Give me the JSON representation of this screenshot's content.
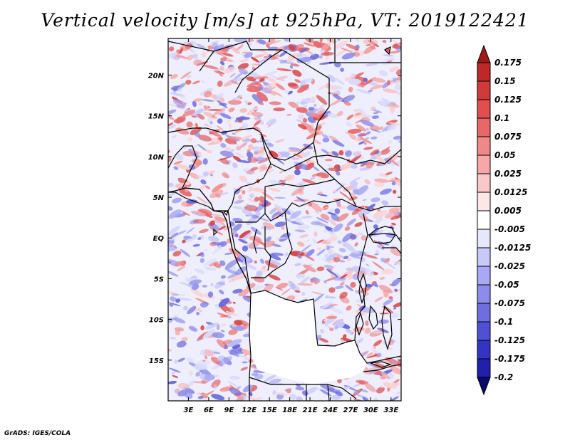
{
  "title": "Vertical velocity [m/s] at 925hPa, VT: 2019122421",
  "credit": "GrADS: IGES/COLA",
  "map": {
    "lon_range": [
      0,
      34.5
    ],
    "lat_range": [
      -20,
      24.5
    ],
    "lon_ticks": [
      "3E",
      "6E",
      "9E",
      "12E",
      "15E",
      "18E",
      "21E",
      "24E",
      "27E",
      "30E",
      "33E"
    ],
    "lon_tick_values": [
      3,
      6,
      9,
      12,
      15,
      18,
      21,
      24,
      27,
      30,
      33
    ],
    "lat_ticks": [
      "20N",
      "15N",
      "10N",
      "5N",
      "EQ",
      "5S",
      "10S",
      "15S"
    ],
    "lat_tick_values": [
      20,
      15,
      10,
      5,
      0,
      -5,
      -10,
      -15
    ]
  },
  "colorbar": {
    "labels": [
      "0.175",
      "0.15",
      "0.125",
      "0.1",
      "0.075",
      "0.05",
      "0.025",
      "0.0125",
      "0.005",
      "-0.005",
      "-0.0125",
      "-0.025",
      "-0.05",
      "-0.075",
      "-0.1",
      "-0.125",
      "-0.175",
      "-0.2"
    ],
    "colors": [
      "#a01818",
      "#c02828",
      "#d23a3a",
      "#e04e4e",
      "#e86868",
      "#f08888",
      "#f6a8a8",
      "#fac8c8",
      "#fde6e6",
      "#ffffff",
      "#e6e6fd",
      "#c8c8fa",
      "#a8a8f4",
      "#8c8cec",
      "#6e6ee2",
      "#5050d6",
      "#3434c4",
      "#2020a8",
      "#14148c",
      "#0a0a6e"
    ]
  }
}
